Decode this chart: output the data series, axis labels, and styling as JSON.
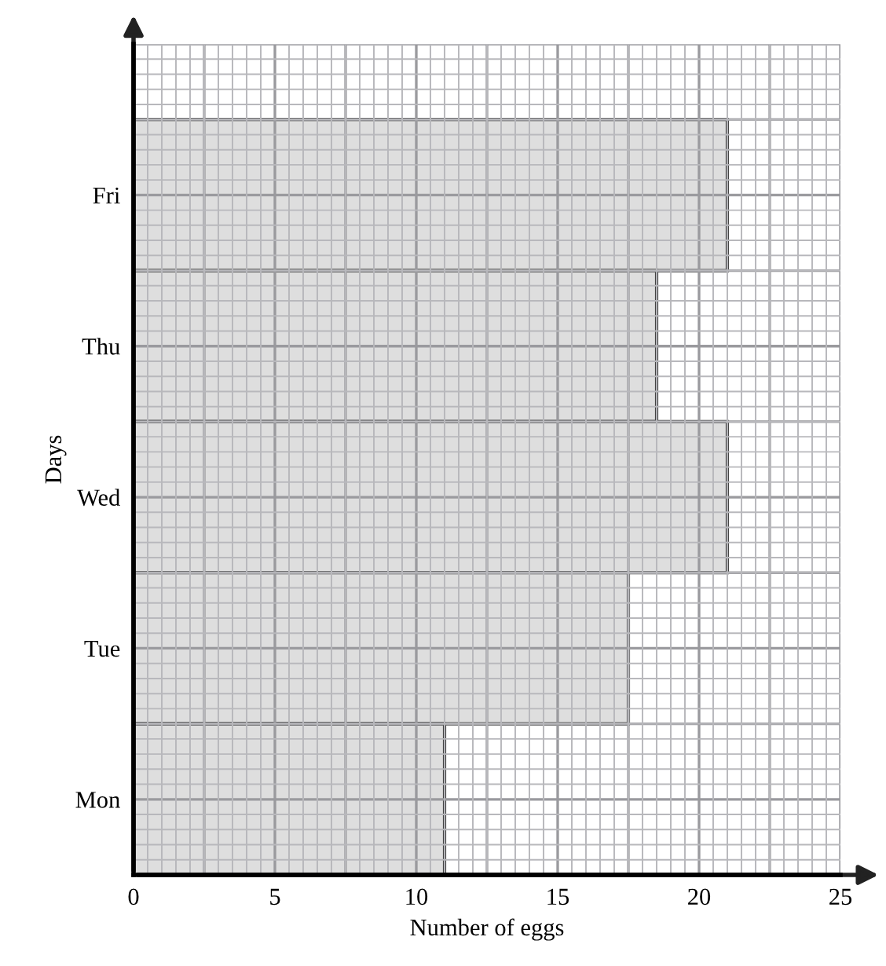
{
  "chart_data": {
    "type": "bar",
    "orientation": "horizontal",
    "xlabel": "Number of eggs",
    "ylabel": "Days",
    "categories": [
      "Fri",
      "Thu",
      "Wed",
      "Tue",
      "Mon"
    ],
    "values": [
      21,
      18.5,
      21,
      17.5,
      11
    ],
    "color": "#dedede",
    "xlim": [
      0,
      25
    ],
    "xticks": [
      0,
      5,
      10,
      15,
      20,
      25
    ],
    "grid": true
  }
}
